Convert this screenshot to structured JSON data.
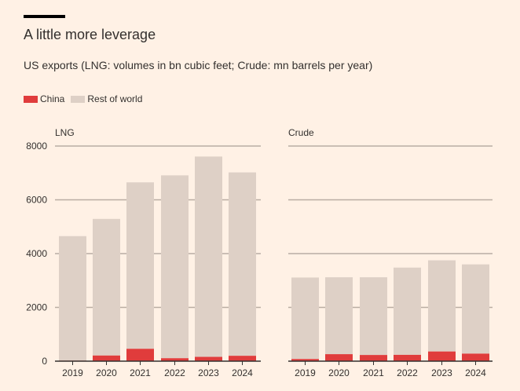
{
  "title": "A little more leverage",
  "subtitle": "US exports (LNG: volumes in bn cubic feet; Crude: mn barrels per year)",
  "legend": [
    {
      "label": "China",
      "color": "#E03C3C"
    },
    {
      "label": "Rest of world",
      "color": "#DED0C6"
    }
  ],
  "colors": {
    "gridline": "#B9ADA3",
    "axis": "#33302E",
    "background": "#FFF1E5"
  },
  "chart_data": [
    {
      "type": "bar",
      "stacked": true,
      "title": "LNG",
      "categories": [
        "2019",
        "2020",
        "2021",
        "2022",
        "2023",
        "2024"
      ],
      "series": [
        {
          "name": "China",
          "values": [
            20,
            210,
            460,
            110,
            160,
            200
          ]
        },
        {
          "name": "Rest of world",
          "values": [
            4630,
            5080,
            6190,
            6800,
            7450,
            6820
          ]
        }
      ],
      "ylim": [
        0,
        8000
      ],
      "yticks": [
        0,
        2000,
        4000,
        6000,
        8000
      ],
      "grid": true
    },
    {
      "type": "bar",
      "stacked": true,
      "title": "Crude",
      "categories": [
        "2019",
        "2020",
        "2021",
        "2022",
        "2023",
        "2024"
      ],
      "series": [
        {
          "name": "China",
          "values": [
            80,
            260,
            230,
            235,
            360,
            280
          ]
        },
        {
          "name": "Rest of world",
          "values": [
            3030,
            2860,
            2890,
            3245,
            3390,
            3320
          ]
        }
      ],
      "ylim": [
        0,
        8000
      ],
      "yticks": [
        0,
        2000,
        4000,
        6000,
        8000
      ],
      "grid": true
    }
  ]
}
